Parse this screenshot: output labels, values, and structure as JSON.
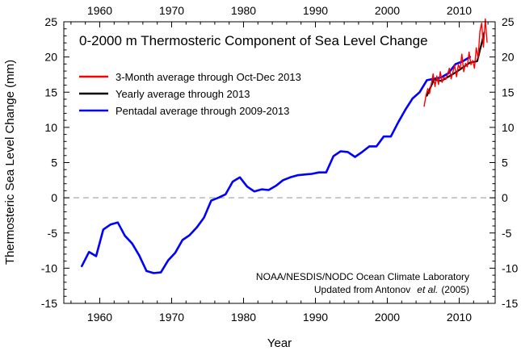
{
  "chart_data": {
    "type": "line",
    "title": "0-2000 m Thermosteric Component of Sea Level Change",
    "xlabel": "Year",
    "ylabel": "Thermosteric Sea Level Change (mm)",
    "xlim": [
      1955,
      2015
    ],
    "ylim": [
      -15,
      25
    ],
    "x_ticks": [
      1960,
      1970,
      1980,
      1990,
      2000,
      2010
    ],
    "y_ticks": [
      -15,
      -10,
      -5,
      0,
      5,
      10,
      15,
      20,
      25
    ],
    "zero_line": {
      "y": 0,
      "style": "dashed",
      "color": "#aaaaaa"
    },
    "legend": {
      "placement": "top-left",
      "entries": [
        {
          "label": "3-Month average through Oct-Dec 2013",
          "color": "#ff0000"
        },
        {
          "label": "Yearly average through 2013",
          "color": "#000000"
        },
        {
          "label": "Pentadal average through 2009-2013",
          "color": "#0000ff"
        }
      ]
    },
    "annotation": {
      "line1": "NOAA/NESDIS/NODC Ocean Climate Laboratory",
      "line2_prefix": "Updated from Antonov",
      "line2_italic": "et al.",
      "line2_suffix": "(2005)",
      "placement": "bottom-right"
    },
    "series": [
      {
        "name": "Pentadal average through 2009-2013",
        "color": "#0000ff",
        "x": [
          1957.5,
          1958.5,
          1959.5,
          1960.5,
          1961.5,
          1962.5,
          1963.5,
          1964.5,
          1965.5,
          1966.5,
          1967.5,
          1968.5,
          1969.5,
          1970.5,
          1971.5,
          1972.5,
          1973.5,
          1974.5,
          1975.5,
          1976.5,
          1977.5,
          1978.5,
          1979.5,
          1980.5,
          1981.5,
          1982.5,
          1983.5,
          1984.5,
          1985.5,
          1986.5,
          1987.5,
          1988.5,
          1989.5,
          1990.5,
          1991.5,
          1992.5,
          1993.5,
          1994.5,
          1995.5,
          1996.5,
          1997.5,
          1998.5,
          1999.5,
          2000.5,
          2001.5,
          2002.5,
          2003.5,
          2004.5,
          2005.5,
          2006.5,
          2007.5,
          2008.5,
          2009.5,
          2010.5,
          2011.5
        ],
        "values": [
          -9.7,
          -7.7,
          -8.3,
          -4.5,
          -3.8,
          -3.5,
          -5.4,
          -6.5,
          -8.2,
          -10.4,
          -10.7,
          -10.6,
          -8.9,
          -7.8,
          -6.0,
          -5.3,
          -4.2,
          -2.8,
          -0.4,
          0.0,
          0.5,
          2.3,
          2.9,
          1.6,
          0.9,
          1.2,
          1.1,
          1.7,
          2.5,
          2.9,
          3.2,
          3.3,
          3.4,
          3.6,
          3.6,
          5.9,
          6.6,
          6.5,
          5.8,
          6.5,
          7.3,
          7.3,
          8.7,
          8.7,
          10.7,
          12.5,
          14.1,
          15.0,
          16.7,
          16.9,
          17.1,
          17.7,
          19.0,
          19.4,
          20.0
        ]
      },
      {
        "name": "Yearly average through 2013",
        "color": "#000000",
        "x": [
          2005.5,
          2006.5,
          2007.5,
          2008.5,
          2009.5,
          2010.5,
          2011.5,
          2012.5,
          2013.5
        ],
        "values": [
          14.5,
          16.8,
          16.6,
          17.2,
          17.8,
          18.5,
          19.2,
          19.4,
          23.5
        ]
      },
      {
        "name": "3-Month average through Oct-Dec 2013",
        "color": "#ff0000",
        "x": [
          2005.125,
          2005.375,
          2005.625,
          2005.875,
          2006.125,
          2006.375,
          2006.625,
          2006.875,
          2007.125,
          2007.375,
          2007.625,
          2007.875,
          2008.125,
          2008.375,
          2008.625,
          2008.875,
          2009.125,
          2009.375,
          2009.625,
          2009.875,
          2010.125,
          2010.375,
          2010.625,
          2010.875,
          2011.125,
          2011.375,
          2011.625,
          2011.875,
          2012.125,
          2012.375,
          2012.625,
          2012.875,
          2013.125,
          2013.375,
          2013.625,
          2013.875
        ],
        "values": [
          13.0,
          14.5,
          15.5,
          14.8,
          16.2,
          17.6,
          15.8,
          17.3,
          16.1,
          17.9,
          16.4,
          17.1,
          16.8,
          17.5,
          18.4,
          16.9,
          17.9,
          18.8,
          17.2,
          18.9,
          18.3,
          20.4,
          17.9,
          19.1,
          18.6,
          20.7,
          18.9,
          19.5,
          18.4,
          21.3,
          19.8,
          23.6,
          24.8,
          21.4,
          25.4,
          22.1
        ]
      }
    ]
  }
}
